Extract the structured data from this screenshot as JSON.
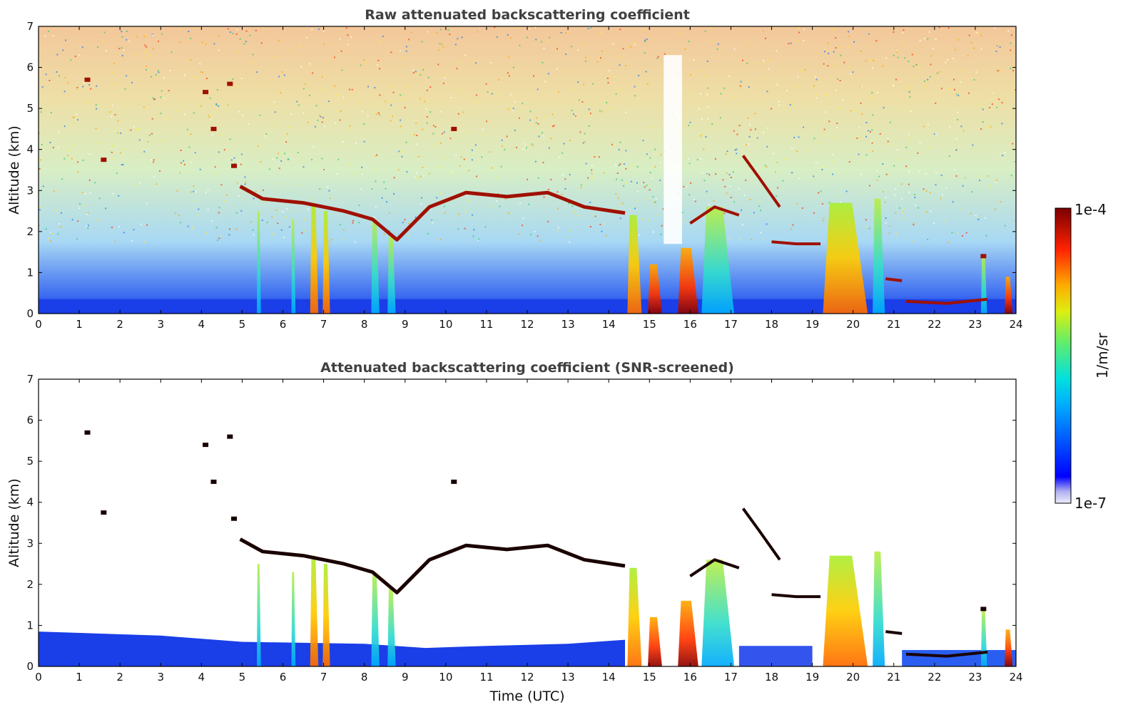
{
  "chart_data": [
    {
      "type": "heatmap",
      "title": "Raw attenuated backscattering coefficient",
      "xlabel": "",
      "ylabel": "Altitude (km)",
      "xlim": [
        0,
        24
      ],
      "ylim": [
        0,
        7
      ],
      "xticks": [
        "0",
        "1",
        "2",
        "3",
        "4",
        "5",
        "6",
        "7",
        "8",
        "9",
        "10",
        "11",
        "12",
        "13",
        "14",
        "15",
        "16",
        "17",
        "18",
        "19",
        "20",
        "21",
        "22",
        "23",
        "24"
      ],
      "yticks": [
        "0",
        "1",
        "2",
        "3",
        "4",
        "5",
        "6",
        "7"
      ],
      "grid": false,
      "screened": false,
      "cloud_layer": [
        {
          "x": 4.95,
          "y": 3.1
        },
        {
          "x": 5.5,
          "y": 2.8
        },
        {
          "x": 6.5,
          "y": 2.7
        },
        {
          "x": 7.5,
          "y": 2.5
        },
        {
          "x": 8.2,
          "y": 2.3
        },
        {
          "x": 8.8,
          "y": 1.8
        },
        {
          "x": 9.6,
          "y": 2.6
        },
        {
          "x": 10.5,
          "y": 2.95
        },
        {
          "x": 11.5,
          "y": 2.85
        },
        {
          "x": 12.5,
          "y": 2.95
        },
        {
          "x": 13.4,
          "y": 2.6
        },
        {
          "x": 14.4,
          "y": 2.45
        }
      ]
    },
    {
      "type": "heatmap",
      "title": "Attenuated backscattering coefficient (SNR-screened)",
      "xlabel": "Time (UTC)",
      "ylabel": "Altitude (km)",
      "xlim": [
        0,
        24
      ],
      "ylim": [
        0,
        7
      ],
      "xticks": [
        "0",
        "1",
        "2",
        "3",
        "4",
        "5",
        "6",
        "7",
        "8",
        "9",
        "10",
        "11",
        "12",
        "13",
        "14",
        "15",
        "16",
        "17",
        "18",
        "19",
        "20",
        "21",
        "22",
        "23",
        "24"
      ],
      "yticks": [
        "0",
        "1",
        "2",
        "3",
        "4",
        "5",
        "6",
        "7"
      ],
      "grid": false,
      "screened": true
    }
  ],
  "colorbar": {
    "label": "1/m/sr",
    "max_label": "1e-4",
    "min_label": "1e-7",
    "colormap": "jet"
  }
}
